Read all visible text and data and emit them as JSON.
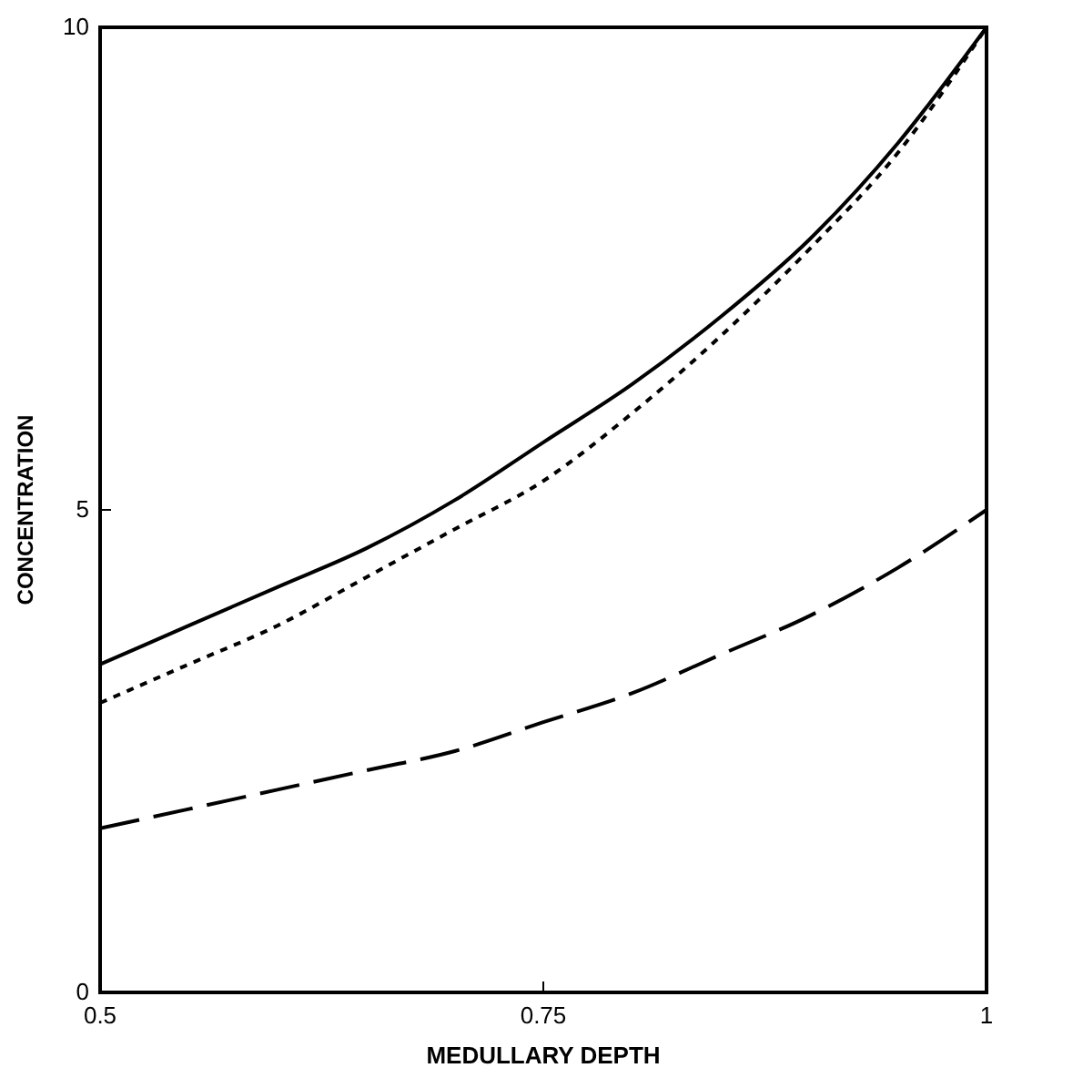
{
  "chart_data": {
    "type": "line",
    "xlabel": "MEDULLARY DEPTH",
    "ylabel": "CONCENTRATION",
    "x": [
      0.5,
      0.55,
      0.6,
      0.65,
      0.7,
      0.75,
      0.8,
      0.85,
      0.9,
      0.95,
      1
    ],
    "xlim": [
      0.5,
      1
    ],
    "xticks": [
      0.5,
      0.75,
      1
    ],
    "ylim": [
      0,
      10
    ],
    "yticks": [
      0,
      5,
      10
    ],
    "grid": false,
    "marker": "none",
    "series": [
      {
        "color": "#000000",
        "line_style": "solid",
        "values": [
          3.4,
          3.8,
          4.2,
          4.6,
          5.1,
          5.7,
          6.3,
          7.0,
          7.8,
          8.8,
          10
        ]
      },
      {
        "color": "#000000",
        "line_style": "dotted",
        "values": [
          3.0,
          3.4,
          3.8,
          4.3,
          4.8,
          5.3,
          6.0,
          6.8,
          7.7,
          8.7,
          10
        ]
      },
      {
        "color": "#000000",
        "line_style": "dashed",
        "values": [
          1.7,
          1.9,
          2.1,
          2.3,
          2.5,
          2.8,
          3.1,
          3.5,
          3.9,
          4.4,
          5.0
        ]
      }
    ]
  }
}
